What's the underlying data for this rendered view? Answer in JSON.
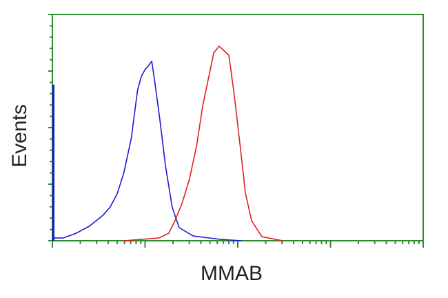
{
  "chart_data": {
    "type": "line",
    "title": "",
    "xlabel": "MMAB",
    "ylabel": "Events",
    "x_scale": "log",
    "xlim": [
      1,
      10000
    ],
    "ylim": [
      0,
      100
    ],
    "grid": false,
    "axis_color": "#2e8b2e",
    "series": [
      {
        "color": "#1a1ad6",
        "x": [
          1.0,
          1.3,
          1.8,
          2.5,
          3.5,
          4.2,
          5.0,
          5.9,
          7.1,
          8.3,
          9.1,
          10,
          10.8,
          11.8,
          12.8,
          14.5,
          16.6,
          19.6,
          23.3,
          33,
          65,
          110
        ],
        "y": [
          1.2,
          1.2,
          3.3,
          6.4,
          11.2,
          14.9,
          20.7,
          30.1,
          45.3,
          66.6,
          72.6,
          75.7,
          77.2,
          79.3,
          69.6,
          52.9,
          33.1,
          14.9,
          5.8,
          2.1,
          0.6,
          0
        ],
        "edge_spike": 69
      },
      {
        "color": "#e01e1e",
        "x": [
          5.9,
          14,
          18,
          21,
          25,
          30,
          36,
          42,
          49,
          55,
          63,
          71,
          80,
          92,
          106,
          121,
          141,
          182,
          305
        ],
        "y": [
          0,
          1.2,
          3.3,
          8.8,
          16.4,
          27,
          42,
          60,
          73,
          83,
          86,
          84,
          82,
          64,
          42,
          21,
          8.8,
          1.8,
          0
        ]
      }
    ]
  }
}
